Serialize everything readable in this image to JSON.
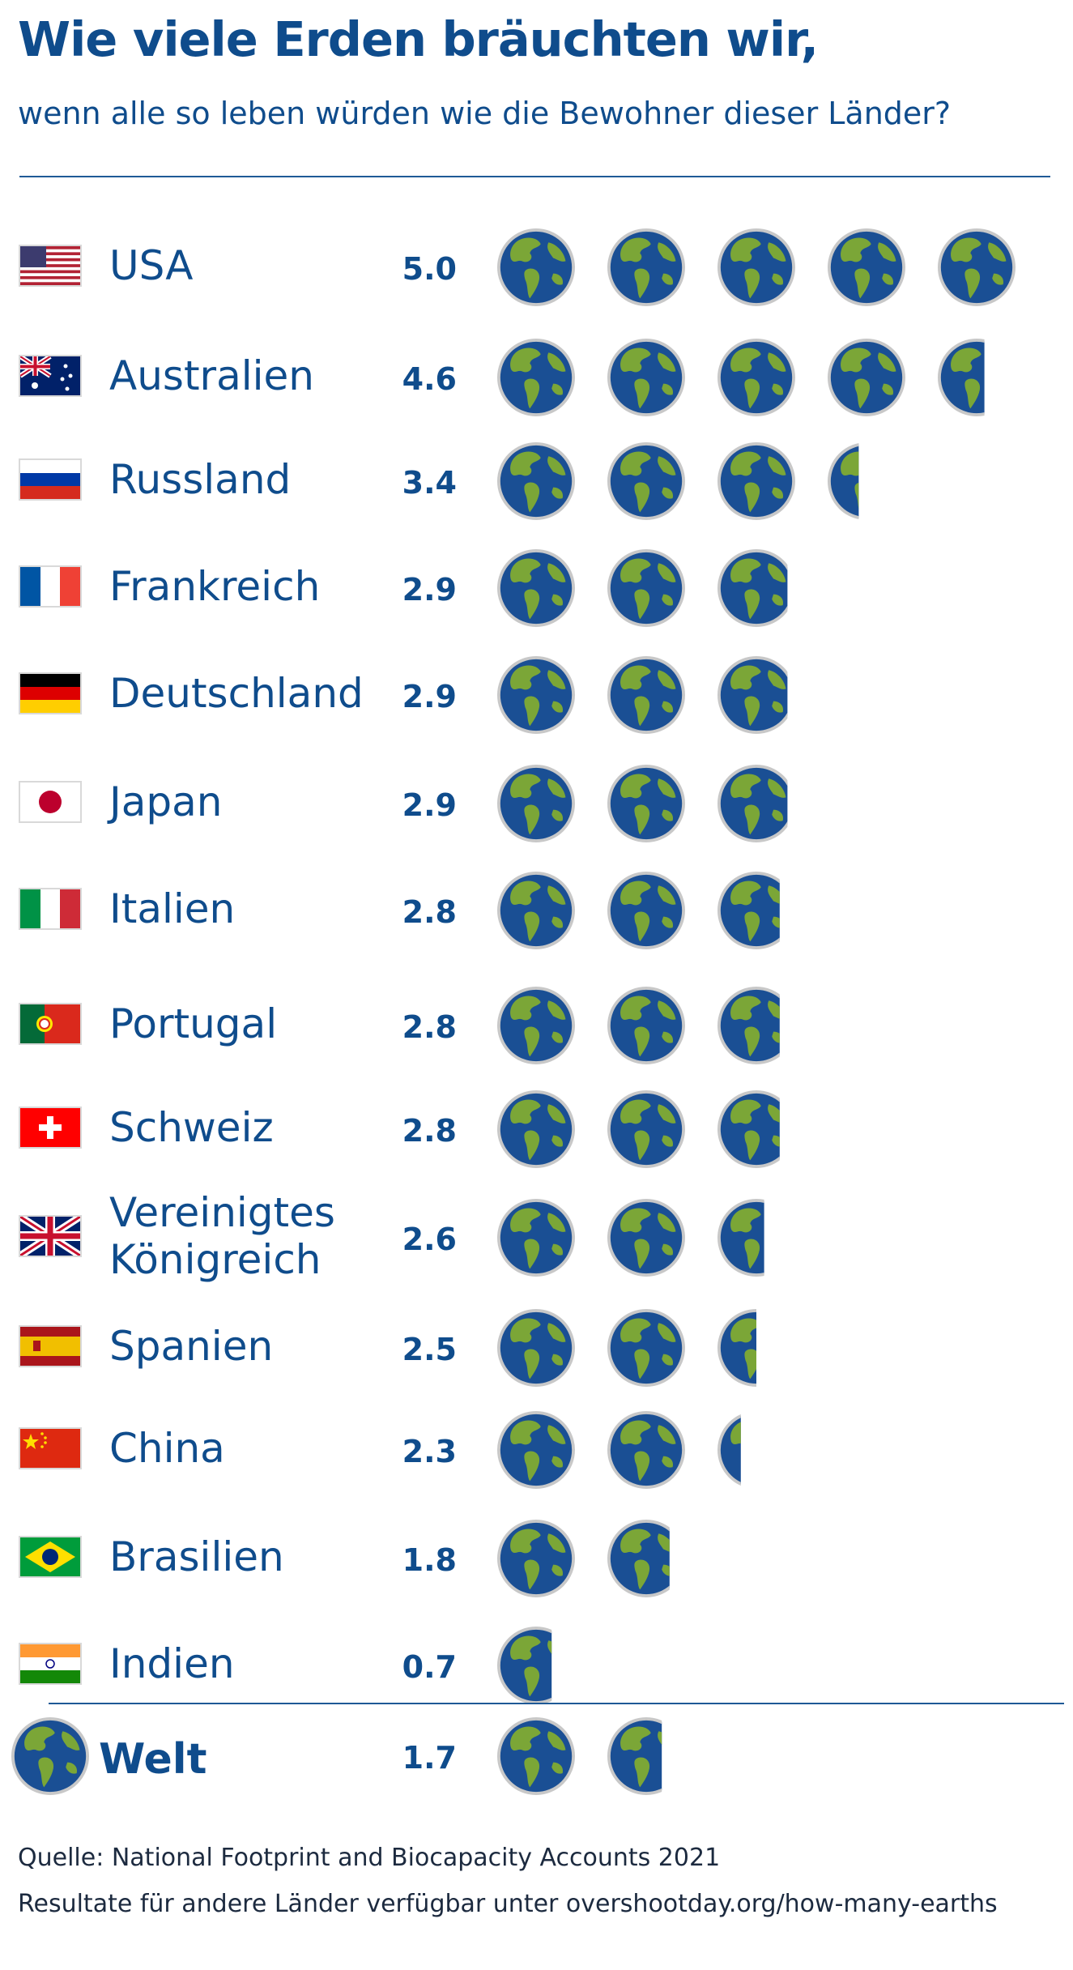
{
  "header": {
    "title": "Wie viele Erden bräuchten wir,",
    "subtitle": "wenn alle so leben würden wie die Bewohner dieser Länder?"
  },
  "colors": {
    "text": "#0f4c8c",
    "ocean": "#1a4f94",
    "land": "#7ba637",
    "ring": "#c8c8c8"
  },
  "chart_data": {
    "type": "pictogram",
    "unit_icon": "earth-icon",
    "categories": [
      "USA",
      "Australien",
      "Russland",
      "Frankreich",
      "Deutschland",
      "Japan",
      "Italien",
      "Portugal",
      "Schweiz",
      "Vereinigtes Königreich",
      "Spanien",
      "China",
      "Brasilien",
      "Indien"
    ],
    "values": [
      5.0,
      4.6,
      3.4,
      2.9,
      2.9,
      2.9,
      2.8,
      2.8,
      2.8,
      2.6,
      2.5,
      2.3,
      1.8,
      0.7
    ],
    "value_labels": [
      "5.0",
      "4.6",
      "3.4",
      "2.9",
      "2.9",
      "2.9",
      "2.8",
      "2.8",
      "2.8",
      "2.6",
      "2.5",
      "2.3",
      "1.8",
      "0.7"
    ],
    "flags": [
      "us",
      "au",
      "ru",
      "fr",
      "de",
      "jp",
      "it",
      "pt",
      "ch",
      "gb",
      "es",
      "cn",
      "br",
      "in"
    ],
    "world": {
      "label": "Welt",
      "value": 1.7,
      "value_label": "1.7"
    }
  },
  "footer": {
    "source": "Quelle: National Footprint and Biocapacity Accounts 2021",
    "note": "Resultate für andere Länder verfügbar unter overshootday.org/how-many-earths"
  }
}
